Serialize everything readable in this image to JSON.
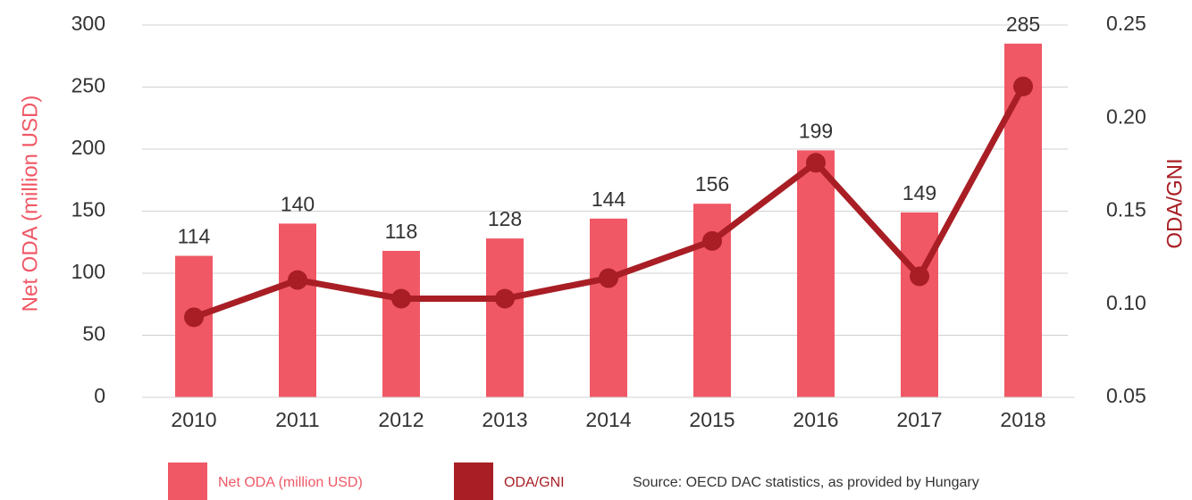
{
  "chart_data": {
    "type": "bar",
    "categories": [
      "2010",
      "2011",
      "2012",
      "2013",
      "2014",
      "2015",
      "2016",
      "2017",
      "2018"
    ],
    "series": [
      {
        "name": "Net ODA (million USD)",
        "type": "bar",
        "color": "#f05866",
        "values": [
          114,
          140,
          118,
          128,
          144,
          156,
          199,
          149,
          285
        ]
      },
      {
        "name": "ODA/GNI",
        "type": "line",
        "axis": "y2",
        "color": "#a81e24",
        "values": [
          0.093,
          0.113,
          0.103,
          0.103,
          0.114,
          0.134,
          0.176,
          0.115,
          0.217
        ]
      }
    ],
    "ylabel": "Net ODA (million USD)",
    "y2label": "ODA/GNI",
    "ylim": [
      0,
      300
    ],
    "yticks": [
      0,
      50,
      100,
      150,
      200,
      250,
      300
    ],
    "y2lim": [
      0.05,
      0.25
    ],
    "y2ticks": [
      0.05,
      {
        "value": 0.1,
        "label": "0.10"
      },
      0.15,
      {
        "value": 0.2,
        "label": "0.20"
      },
      0.25
    ],
    "grid": true,
    "legend": "bottom",
    "source": "Source: OECD DAC statistics, as provided by Hungary"
  }
}
